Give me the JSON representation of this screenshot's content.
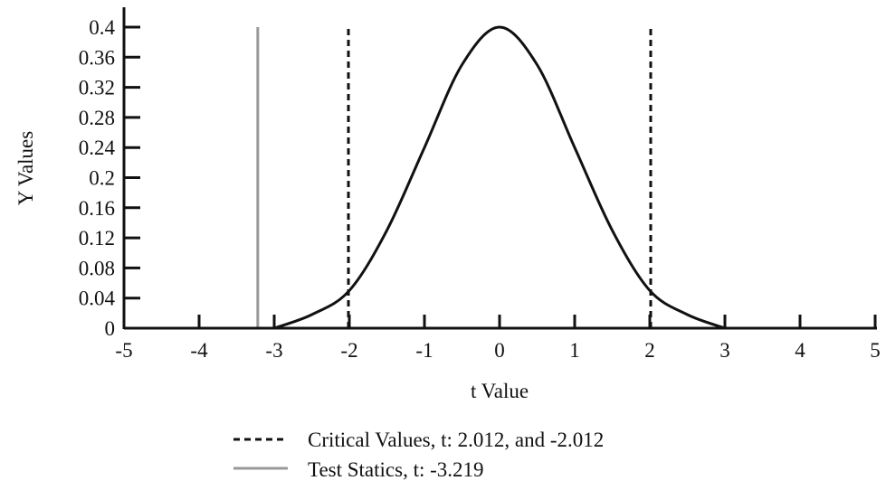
{
  "chart_data": {
    "type": "line",
    "xlabel": "t Value",
    "ylabel": "Y Values",
    "xlim": [
      -5,
      5
    ],
    "ylim": [
      0,
      0.4
    ],
    "x_ticks": [
      -5,
      -4,
      -3,
      -2,
      -1,
      0,
      1,
      2,
      3,
      4,
      5
    ],
    "x_tick_labels": [
      "-5",
      "-4",
      "-3",
      "-2",
      "-1",
      "0",
      "1",
      "2",
      "3",
      "4",
      "5"
    ],
    "y_ticks": [
      0,
      0.04,
      0.08,
      0.12,
      0.16,
      0.2,
      0.24,
      0.28,
      0.32,
      0.36,
      0.4
    ],
    "y_tick_labels": [
      "0",
      "0.04",
      "0.08",
      "0.12",
      "0.16",
      "0.2",
      "0.24",
      "0.28",
      "0.32",
      "0.36",
      "0.4"
    ],
    "grid": false,
    "legend_position": "bottom-center",
    "curve": {
      "x": [
        -3.0,
        -2.5,
        -2.0,
        -1.5,
        -1.0,
        -0.5,
        0.0,
        0.5,
        1.0,
        1.5,
        2.0,
        2.5,
        3.0
      ],
      "y": [
        0.0,
        0.018,
        0.05,
        0.13,
        0.24,
        0.35,
        0.4,
        0.35,
        0.24,
        0.13,
        0.05,
        0.018,
        0.0
      ],
      "color": "#111111"
    },
    "critical_values": {
      "x": [
        -2.012,
        2.012
      ],
      "y_top": 0.4,
      "color": "#111111",
      "style": "dashed"
    },
    "test_statistic": {
      "x": -3.219,
      "y_top": 0.4,
      "color": "#999999",
      "style": "solid"
    },
    "legend": [
      {
        "label": "Critical Values, t: 2.012, and -2.012",
        "color": "#111111",
        "style": "dashed"
      },
      {
        "label": "Test Statics, t: -3.219",
        "color": "#999999",
        "style": "solid"
      }
    ]
  }
}
